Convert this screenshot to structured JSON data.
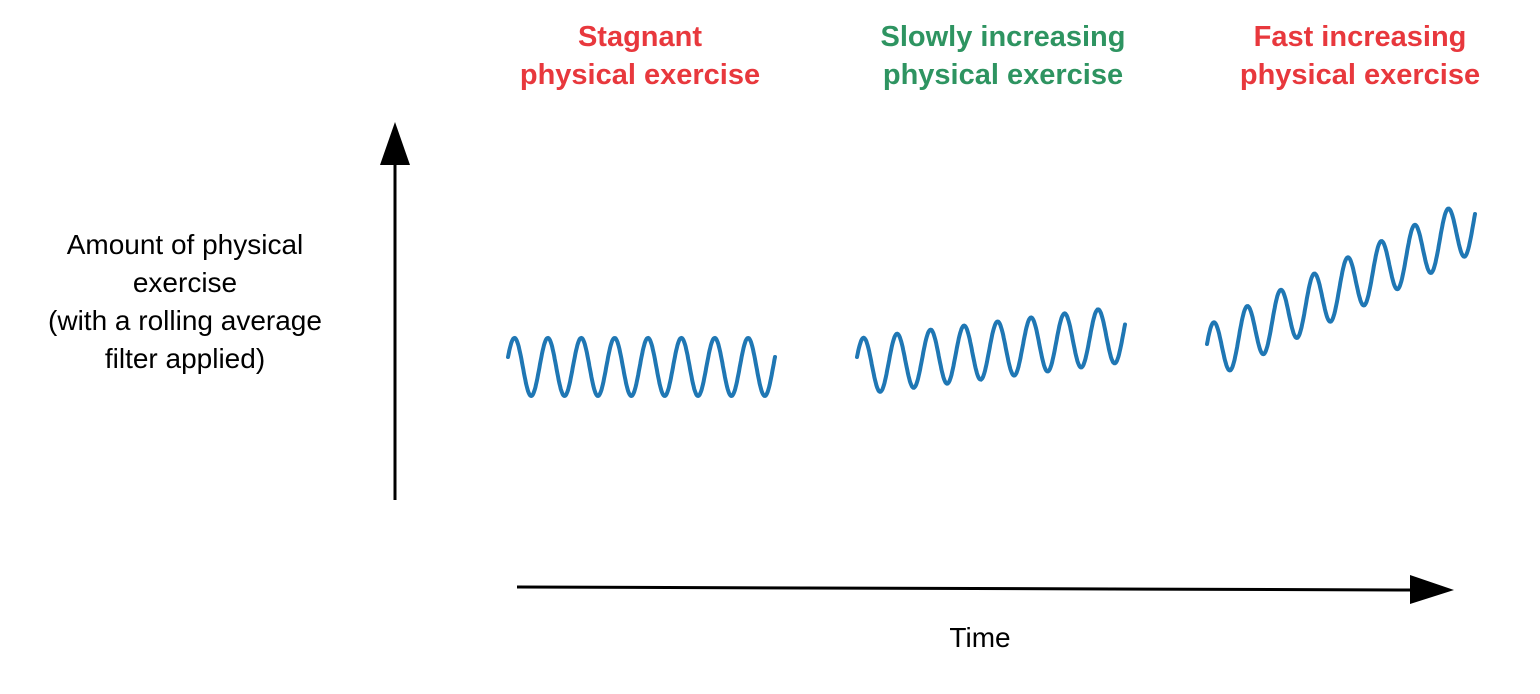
{
  "diagram": {
    "y_axis_label": [
      "Amount of physical",
      "exercise",
      "(with a rolling average",
      "filter applied)"
    ],
    "x_axis_label": "Time",
    "panels": [
      {
        "id": "stagnant",
        "title_line1": "Stagnant",
        "title_line2": "physical exercise",
        "color": "#e8383d",
        "cycles": 8,
        "trend": 0.0
      },
      {
        "id": "slow",
        "title_line1": "Slowly increasing",
        "title_line2": "physical exercise",
        "color": "#2e9461",
        "cycles": 8,
        "trend": 0.25
      },
      {
        "id": "fast",
        "title_line1": "Fast increasing",
        "title_line2": "physical exercise",
        "color": "#e8383d",
        "cycles": 8,
        "trend": 1.0
      }
    ],
    "wave_color": "#1f77b4",
    "axis_color": "#000000"
  }
}
